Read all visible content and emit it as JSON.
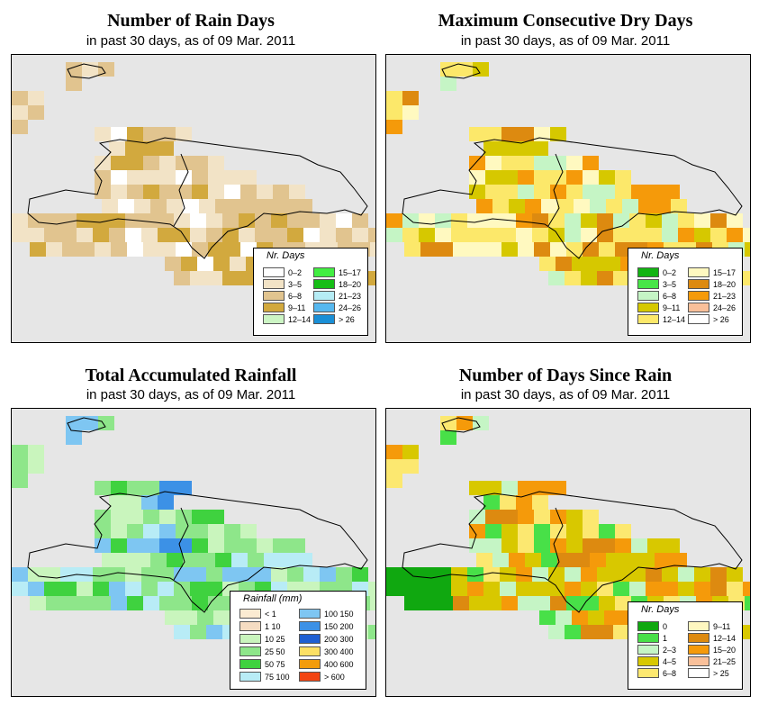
{
  "panels": {
    "p1": {
      "title": "Number of Rain Days",
      "subtitle": "in past 30 days, as of  09 Mar. 2011",
      "legend": {
        "title": "Nr. Days",
        "items": [
          {
            "label": "0–2",
            "color": "#ffffff"
          },
          {
            "label": "3–5",
            "color": "#f2e3c6"
          },
          {
            "label": "6–8",
            "color": "#e1c48f"
          },
          {
            "label": "9–11",
            "color": "#d2a93e"
          },
          {
            "label": "12–14",
            "color": "#ccf5c4"
          },
          {
            "label": "15–17",
            "color": "#42ee42"
          },
          {
            "label": "18–20",
            "color": "#16be16"
          },
          {
            "label": "21–23",
            "color": "#b5ecf5"
          },
          {
            "label": "24–26",
            "color": "#57b8ef"
          },
          {
            "label": "> 26",
            "color": "#1a8fd6"
          }
        ]
      }
    },
    "p2": {
      "title": "Maximum Consecutive Dry Days",
      "subtitle": "in past 30 days, as of  09 Mar. 2011",
      "legend": {
        "title": "Nr. Days",
        "items": [
          {
            "label": "0–2",
            "color": "#12b412"
          },
          {
            "label": "3–5",
            "color": "#48e648"
          },
          {
            "label": "6–8",
            "color": "#c5f5c5"
          },
          {
            "label": "9–11",
            "color": "#d6c800"
          },
          {
            "label": "12–14",
            "color": "#fce86a"
          },
          {
            "label": "15–17",
            "color": "#fff9c0"
          },
          {
            "label": "18–20",
            "color": "#dd8a10"
          },
          {
            "label": "21–23",
            "color": "#f59a0a"
          },
          {
            "label": "24–26",
            "color": "#f9c09a"
          },
          {
            "label": "> 26",
            "color": "#ffffff"
          }
        ]
      }
    },
    "p3": {
      "title": "Total Accumulated Rainfall",
      "subtitle": "in past 30 days, as of  09 Mar. 2011",
      "legend": {
        "title": "Rainfall (mm)",
        "items": [
          {
            "label": "< 1",
            "color": "#fbebd2"
          },
          {
            "label": "1     10",
            "color": "#f5dcc2"
          },
          {
            "label": "10    25",
            "color": "#c9f5bd"
          },
          {
            "label": "25    50",
            "color": "#8ee68a"
          },
          {
            "label": "50    75",
            "color": "#3fd23f"
          },
          {
            "label": "75   100",
            "color": "#b8ecf6"
          },
          {
            "label": "100  150",
            "color": "#7ec6f2"
          },
          {
            "label": "150  200",
            "color": "#3c91e6"
          },
          {
            "label": "200  300",
            "color": "#1f5fd2"
          },
          {
            "label": "300  400",
            "color": "#fce064"
          },
          {
            "label": "400  600",
            "color": "#f39c0c"
          },
          {
            "label": "> 600",
            "color": "#f24512"
          }
        ]
      }
    },
    "p4": {
      "title": "Number of Days Since Rain",
      "subtitle": "in past 30 days, as of  09 Mar. 2011",
      "legend": {
        "title": "Nr. Days",
        "items": [
          {
            "label": "0",
            "color": "#10a810"
          },
          {
            "label": "1",
            "color": "#48e048"
          },
          {
            "label": "2–3",
            "color": "#c5f5c5"
          },
          {
            "label": "4–5",
            "color": "#d8c800"
          },
          {
            "label": "6–8",
            "color": "#fce870"
          },
          {
            "label": "9–11",
            "color": "#fff7c0"
          },
          {
            "label": "12–14",
            "color": "#dd8a10"
          },
          {
            "label": "15–20",
            "color": "#f59a0a"
          },
          {
            "label": "21–25",
            "color": "#f9c09a"
          },
          {
            "label": "> 25",
            "color": "#ffffff"
          }
        ]
      }
    }
  }
}
